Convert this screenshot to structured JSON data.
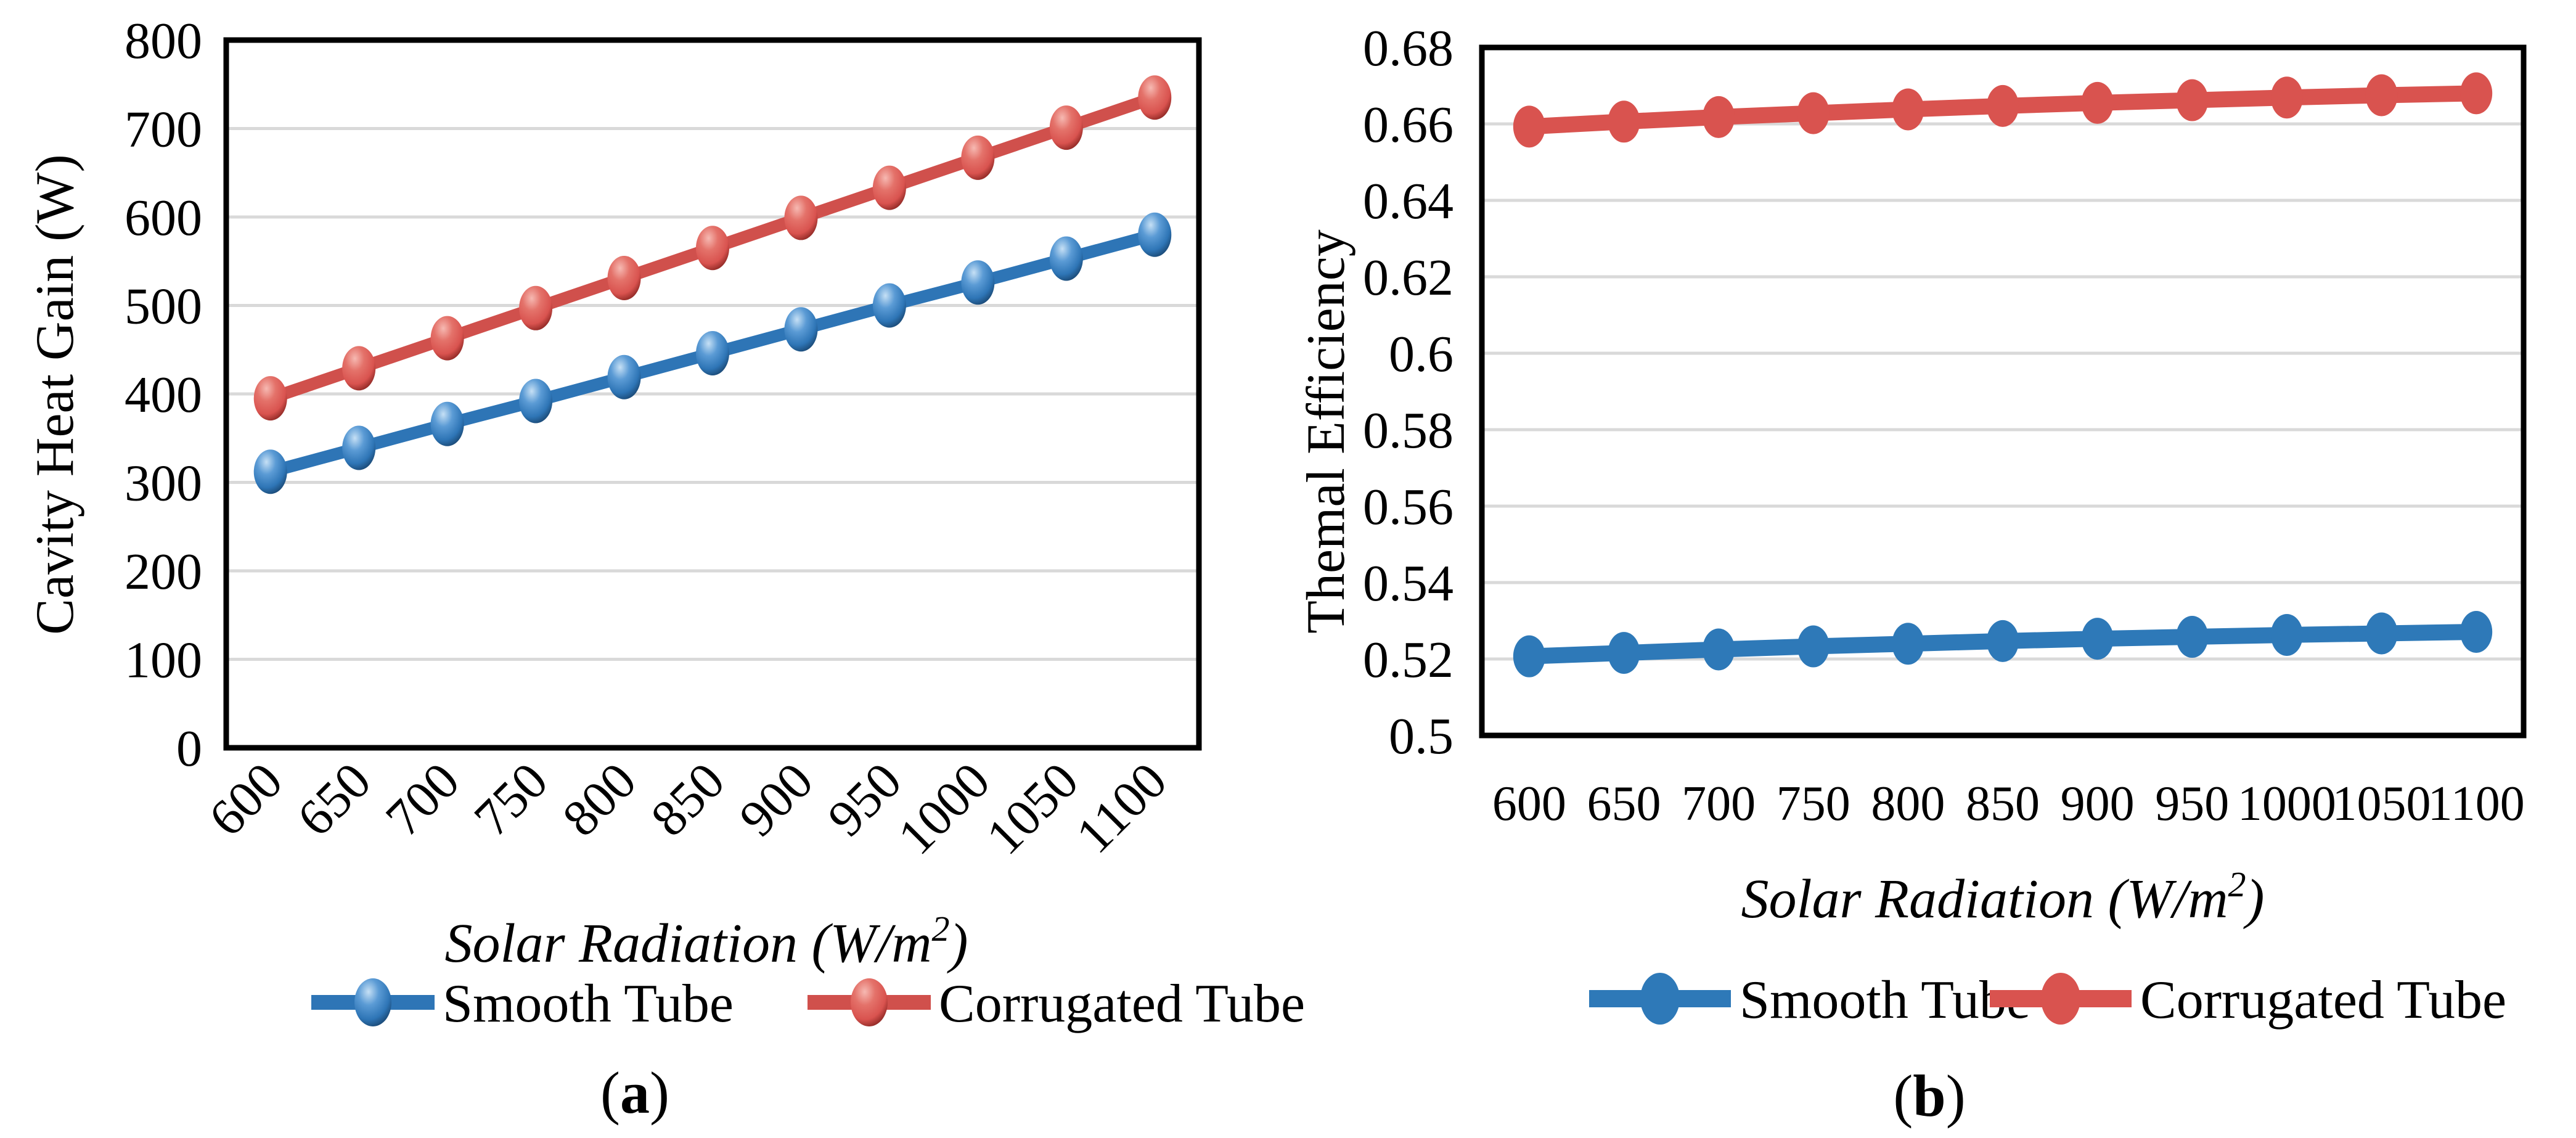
{
  "figure": {
    "description": "Two-panel line chart figure comparing Smooth Tube and Corrugated Tube collectors versus solar radiation",
    "background_color": "#FFFFFF"
  },
  "colors": {
    "smooth_tube_blue": "#2E75B6",
    "smooth_tube_blue_flat": "#2E79B8",
    "corrugated_tube_red": "#D9534F",
    "corrugated_line_red": "#D0504C",
    "gridline_gray": "#D9D9D9",
    "axis_black": "#000000"
  },
  "legend": {
    "smooth_label": "Smooth Tube",
    "corrugated_label": "Corrugated Tube"
  },
  "panel_a": {
    "caption_open": "(",
    "caption_letter": "a",
    "caption_close": ")",
    "ylabel": "Cavity Heat Gain (W)",
    "xlabel_main": "Solar Radiation",
    "xlabel_units_prefix": " (W/m",
    "xlabel_sup": "2",
    "xlabel_units_suffix": ")"
  },
  "panel_b": {
    "caption_open": "(",
    "caption_letter": "b",
    "caption_close": ")",
    "ylabel": "Themal Efficiency",
    "xlabel_main": "Solar Radiation",
    "xlabel_units_prefix": " (W/m",
    "xlabel_sup": "2",
    "xlabel_units_suffix": ")"
  },
  "chart_data": [
    {
      "panel": "a",
      "type": "line",
      "title": "",
      "xlabel": "Solar Radiation (W/m2)",
      "ylabel": "Cavity Heat Gain (W)",
      "x": [
        600,
        650,
        700,
        750,
        800,
        850,
        900,
        950,
        1000,
        1050,
        1100
      ],
      "x_tick_labels": [
        "600",
        "650",
        "700",
        "750",
        "800",
        "850",
        "900",
        "950",
        "1000",
        "1050",
        "1100"
      ],
      "x_tick_rotation_deg": -45,
      "ylim": [
        0,
        800
      ],
      "y_tick_step": 100,
      "y_tick_labels": [
        "0",
        "100",
        "200",
        "300",
        "400",
        "500",
        "600",
        "700",
        "800"
      ],
      "grid": "horizontal",
      "legend_position": "bottom",
      "marker_style": "glossy-3d-sphere",
      "series": [
        {
          "name": "Smooth Tube",
          "color": "#2E75B6",
          "values": [
            312,
            339,
            366,
            392,
            419,
            446,
            473,
            500,
            526,
            553,
            580
          ]
        },
        {
          "name": "Corrugated Tube",
          "color": "#D0504C",
          "values": [
            395,
            429,
            463,
            497,
            531,
            565,
            599,
            633,
            667,
            701,
            735
          ]
        }
      ]
    },
    {
      "panel": "b",
      "type": "line",
      "title": "",
      "xlabel": "Solar Radiation (W/m2)",
      "ylabel": "Themal Efficiency",
      "x": [
        600,
        650,
        700,
        750,
        800,
        850,
        900,
        950,
        1000,
        1050,
        1100
      ],
      "x_tick_labels": [
        "600",
        "650",
        "700",
        "750",
        "800",
        "850",
        "900",
        "950",
        "1000",
        "1050",
        "1100"
      ],
      "x_tick_rotation_deg": 0,
      "ylim": [
        0.5,
        0.68
      ],
      "y_tick_step": 0.02,
      "y_tick_labels": [
        "0.5",
        "0.52",
        "0.54",
        "0.56",
        "0.58",
        "0.6",
        "0.62",
        "0.64",
        "0.66",
        "0.68"
      ],
      "grid": "horizontal",
      "legend_position": "bottom",
      "marker_style": "flat-ellipse",
      "series": [
        {
          "name": "Smooth Tube",
          "color": "#2E79B8",
          "values": [
            0.5207,
            0.5216,
            0.5225,
            0.5233,
            0.524,
            0.5247,
            0.5253,
            0.5258,
            0.5263,
            0.5267,
            0.5271
          ]
        },
        {
          "name": "Corrugated Tube",
          "color": "#D9534F",
          "values": [
            0.6593,
            0.6606,
            0.6618,
            0.6628,
            0.6638,
            0.6647,
            0.6655,
            0.6662,
            0.6669,
            0.6675,
            0.668
          ]
        }
      ]
    }
  ]
}
